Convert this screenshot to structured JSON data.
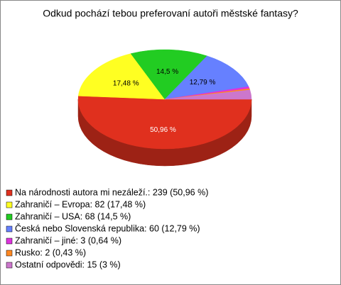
{
  "chart_data": {
    "type": "pie",
    "title": "Odkud pochází tebou preferovaní autoři městské fantasy?",
    "categories": [
      "Na národnosti autora mi nezáleží.: 239 (50,96 %)",
      "Zahraničí – Evropa: 82 (17,48 %)",
      "Zahraničí – USA: 68 (14,5 %)",
      "Česká nebo Slovenská republika: 60 (12,79 %)",
      "Zahraničí – jiné: 3 (0,64 %)",
      "Rusko: 2 (0,43 %)",
      "Ostatní odpovědi: 15 (3 %)"
    ],
    "values": [
      50.96,
      17.48,
      14.5,
      12.79,
      0.64,
      0.43,
      3
    ],
    "value_labels": [
      "50,96 %",
      "17,48 %",
      "14,5 %",
      "12,79 %",
      null,
      null,
      null
    ],
    "colors": [
      "#e0301e",
      "#ffff22",
      "#22cc22",
      "#6680ff",
      "#dd33dd",
      "#ff8822",
      "#cc77cc"
    ]
  }
}
